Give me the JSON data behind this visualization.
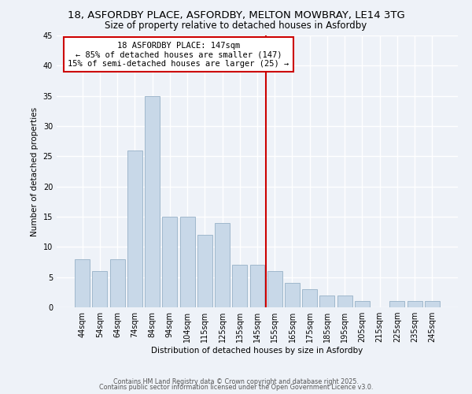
{
  "title_line1": "18, ASFORDBY PLACE, ASFORDBY, MELTON MOWBRAY, LE14 3TG",
  "title_line2": "Size of property relative to detached houses in Asfordby",
  "xlabel": "Distribution of detached houses by size in Asfordby",
  "ylabel": "Number of detached properties",
  "footer_line1": "Contains HM Land Registry data © Crown copyright and database right 2025.",
  "footer_line2": "Contains public sector information licensed under the Open Government Licence v3.0.",
  "categories": [
    "44sqm",
    "54sqm",
    "64sqm",
    "74sqm",
    "84sqm",
    "94sqm",
    "104sqm",
    "115sqm",
    "125sqm",
    "135sqm",
    "145sqm",
    "155sqm",
    "165sqm",
    "175sqm",
    "185sqm",
    "195sqm",
    "205sqm",
    "215sqm",
    "225sqm",
    "235sqm",
    "245sqm"
  ],
  "values": [
    8,
    6,
    8,
    26,
    35,
    15,
    15,
    12,
    14,
    7,
    7,
    6,
    4,
    3,
    2,
    2,
    1,
    0,
    1,
    1,
    1
  ],
  "bar_color": "#c8d8e8",
  "bar_edgecolor": "#a0b8cc",
  "bar_width": 0.85,
  "ylim": [
    0,
    45
  ],
  "yticks": [
    0,
    5,
    10,
    15,
    20,
    25,
    30,
    35,
    40,
    45
  ],
  "vline_x": 10.5,
  "vline_color": "#cc0000",
  "annotation_text": "18 ASFORDBY PLACE: 147sqm\n← 85% of detached houses are smaller (147)\n15% of semi-detached houses are larger (25) →",
  "annotation_box_color": "#ffffff",
  "annotation_border_color": "#cc0000",
  "background_color": "#eef2f8",
  "grid_color": "#ffffff",
  "title_fontsize": 9.5,
  "subtitle_fontsize": 8.5,
  "axis_label_fontsize": 7.5,
  "tick_fontsize": 7,
  "annotation_fontsize": 7.5,
  "footer_fontsize": 5.8
}
